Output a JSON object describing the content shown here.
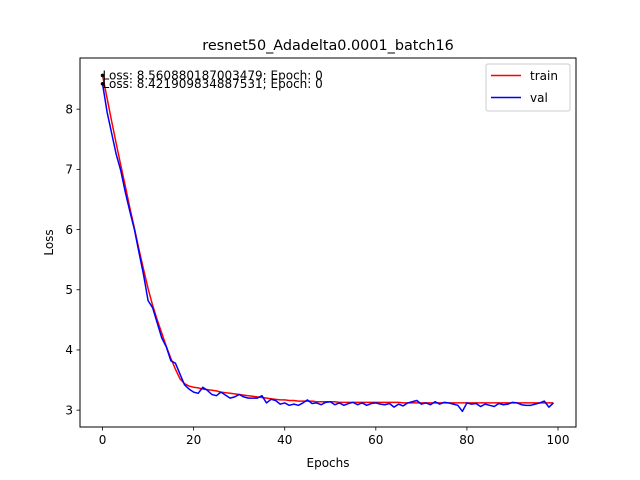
{
  "chart_data": {
    "type": "line",
    "title": "resnet50_Adadelta0.0001_batch16",
    "xlabel": "Epochs",
    "ylabel": "Loss",
    "xlim": [
      -4.95,
      103.95
    ],
    "ylim": [
      2.72,
      8.85
    ],
    "xticks": [
      0,
      20,
      40,
      60,
      80,
      100
    ],
    "yticks": [
      3,
      4,
      5,
      6,
      7,
      8
    ],
    "grid": false,
    "legend_position": "top-right",
    "annotations": [
      {
        "text": "Loss: 8.560880187003479; Epoch: 0",
        "x": 0,
        "y": 8.5609
      },
      {
        "text": "Loss: 8.421909834887531; Epoch: 0",
        "x": 0,
        "y": 8.4219
      }
    ],
    "series": [
      {
        "name": "train",
        "color": "#ff0000",
        "x": [
          0,
          1,
          2,
          3,
          4,
          5,
          6,
          7,
          8,
          9,
          10,
          11,
          12,
          13,
          14,
          15,
          16,
          17,
          18,
          19,
          20,
          21,
          22,
          23,
          24,
          25,
          26,
          27,
          28,
          29,
          30,
          31,
          32,
          33,
          34,
          35,
          36,
          37,
          38,
          39,
          40,
          41,
          42,
          43,
          44,
          45,
          46,
          47,
          48,
          49,
          50,
          51,
          52,
          53,
          54,
          55,
          56,
          57,
          58,
          59,
          60,
          61,
          62,
          63,
          64,
          65,
          66,
          67,
          68,
          69,
          70,
          71,
          72,
          73,
          74,
          75,
          76,
          77,
          78,
          79,
          80,
          81,
          82,
          83,
          84,
          85,
          86,
          87,
          88,
          89,
          90,
          91,
          92,
          93,
          94,
          95,
          96,
          97,
          98,
          99
        ],
        "values": [
          8.56,
          8.18,
          7.8,
          7.43,
          7.07,
          6.72,
          6.36,
          6.02,
          5.67,
          5.34,
          5.02,
          4.74,
          4.5,
          4.28,
          4.06,
          3.86,
          3.68,
          3.52,
          3.44,
          3.4,
          3.38,
          3.37,
          3.35,
          3.34,
          3.33,
          3.32,
          3.3,
          3.29,
          3.28,
          3.27,
          3.26,
          3.25,
          3.24,
          3.23,
          3.22,
          3.21,
          3.2,
          3.19,
          3.18,
          3.17,
          3.17,
          3.16,
          3.16,
          3.15,
          3.15,
          3.15,
          3.15,
          3.14,
          3.14,
          3.14,
          3.14,
          3.14,
          3.13,
          3.13,
          3.13,
          3.13,
          3.13,
          3.13,
          3.13,
          3.13,
          3.13,
          3.13,
          3.13,
          3.13,
          3.13,
          3.13,
          3.12,
          3.12,
          3.12,
          3.12,
          3.12,
          3.12,
          3.12,
          3.12,
          3.12,
          3.12,
          3.12,
          3.12,
          3.12,
          3.12,
          3.12,
          3.12,
          3.12,
          3.12,
          3.12,
          3.12,
          3.12,
          3.12,
          3.12,
          3.12,
          3.12,
          3.12,
          3.12,
          3.12,
          3.12,
          3.12,
          3.12,
          3.12,
          3.12,
          3.12
        ]
      },
      {
        "name": "val",
        "color": "#0000ff",
        "x": [
          0,
          1,
          2,
          3,
          4,
          5,
          6,
          7,
          8,
          9,
          10,
          11,
          12,
          13,
          14,
          15,
          16,
          17,
          18,
          19,
          20,
          21,
          22,
          23,
          24,
          25,
          26,
          27,
          28,
          29,
          30,
          31,
          32,
          33,
          34,
          35,
          36,
          37,
          38,
          39,
          40,
          41,
          42,
          43,
          44,
          45,
          46,
          47,
          48,
          49,
          50,
          51,
          52,
          53,
          54,
          55,
          56,
          57,
          58,
          59,
          60,
          61,
          62,
          63,
          64,
          65,
          66,
          67,
          68,
          69,
          70,
          71,
          72,
          73,
          74,
          75,
          76,
          77,
          78,
          79,
          80,
          81,
          82,
          83,
          84,
          85,
          86,
          87,
          88,
          89,
          90,
          91,
          92,
          93,
          94,
          95,
          96,
          97,
          98,
          99
        ],
        "values": [
          8.42,
          7.95,
          7.6,
          7.25,
          6.98,
          6.62,
          6.3,
          6.0,
          5.62,
          5.25,
          4.82,
          4.7,
          4.45,
          4.2,
          4.05,
          3.82,
          3.78,
          3.6,
          3.42,
          3.35,
          3.3,
          3.28,
          3.38,
          3.33,
          3.26,
          3.24,
          3.3,
          3.25,
          3.2,
          3.22,
          3.26,
          3.22,
          3.2,
          3.2,
          3.2,
          3.24,
          3.12,
          3.18,
          3.16,
          3.1,
          3.12,
          3.08,
          3.1,
          3.08,
          3.12,
          3.17,
          3.11,
          3.12,
          3.09,
          3.13,
          3.14,
          3.09,
          3.12,
          3.08,
          3.11,
          3.13,
          3.09,
          3.12,
          3.08,
          3.11,
          3.12,
          3.1,
          3.09,
          3.11,
          3.05,
          3.1,
          3.07,
          3.12,
          3.14,
          3.16,
          3.1,
          3.12,
          3.09,
          3.14,
          3.1,
          3.13,
          3.12,
          3.1,
          3.08,
          2.98,
          3.12,
          3.1,
          3.11,
          3.06,
          3.1,
          3.08,
          3.06,
          3.11,
          3.09,
          3.1,
          3.13,
          3.12,
          3.09,
          3.08,
          3.08,
          3.1,
          3.12,
          3.15,
          3.05,
          3.12
        ]
      }
    ]
  }
}
